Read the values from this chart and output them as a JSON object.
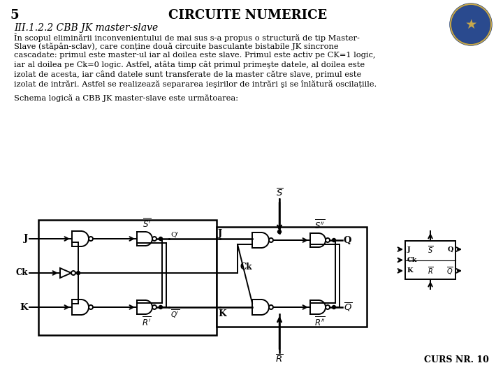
{
  "title": "CIRCUITE NUMERICE",
  "slide_number": "5",
  "subtitle": "III.1.2.2 CBB JK master-slave",
  "para_lines": [
    "În scopul eliminării inconvenientului de mai sus s-a propus o structură de tip Master-",
    "Slave (stăpân-sclav), care conține două circuite basculante bistabile JK sincrone",
    "cascadate: primul este master-ul iar al doilea este slave. Primul este activ pe CK=1 logic,",
    "iar al doilea pe Ck=0 logic. Astfel, atâta timp cât primul primeşte datele, al doilea este",
    "izolat de acesta, iar când datele sunt transferate de la master către slave, primul este",
    "izolat de intrări. Astfel se realizează separarea ieşirilor de intrări şi se înlătură oscilațiile."
  ],
  "schema_label": "Schema logică a CBB JK master-slave este următoarea:",
  "footer": "CURS NR. 10",
  "bg_color": "#ffffff",
  "text_color": "#000000"
}
